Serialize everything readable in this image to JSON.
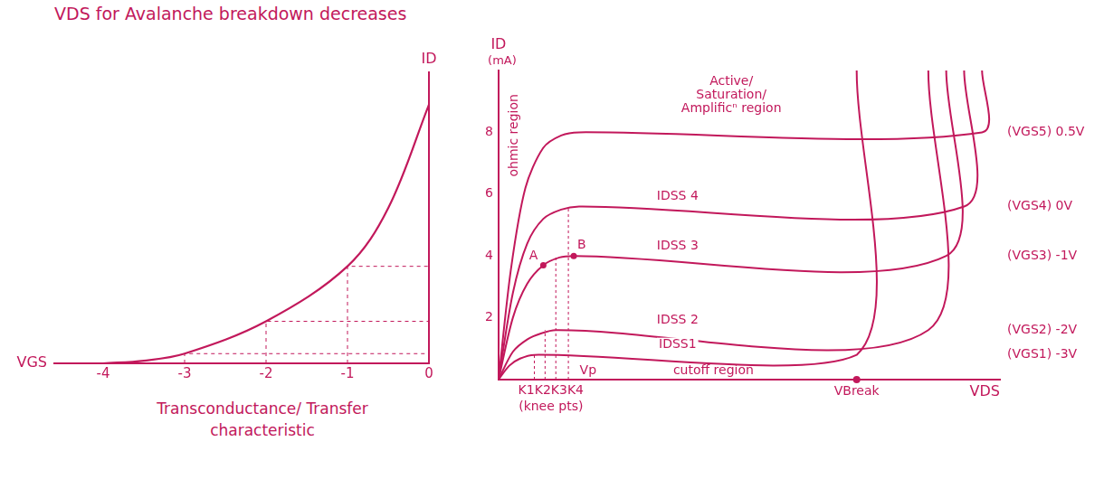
{
  "note": "VDS for Avalanche breakdown decreases",
  "chart_data": [
    {
      "type": "line",
      "title": "Transconductance/ Transfer characteristic",
      "x_label": "VGS",
      "y_label": "ID",
      "x": [
        -4,
        -3.5,
        -3,
        -2,
        -1,
        -0.5,
        0
      ],
      "values": [
        0,
        0.08,
        0.3,
        1.3,
        3.0,
        4.8,
        8
      ],
      "color": "#c2185b",
      "xlim": [
        -4.6,
        0
      ],
      "xticks": [
        -4,
        -3,
        -2,
        -1,
        0
      ],
      "ylim": [
        0,
        9
      ],
      "grid": false,
      "tick_labels": "x"
    },
    {
      "type": "line",
      "x_label": "VDS",
      "y_label": "ID",
      "y_unit": "(mA)",
      "color": "#c2185b",
      "xlim": [
        0,
        28
      ],
      "ylim": [
        0,
        10
      ],
      "yticks": [
        2,
        4,
        6,
        8
      ],
      "grid": false,
      "tick_labels": "y",
      "series": [
        {
          "name": "(VGS5) 0.5V",
          "x": [
            0,
            0.7,
            1.5,
            2.5,
            3.5,
            4.5,
            27,
            27
          ],
          "values": [
            0,
            3.6,
            6.2,
            7.5,
            7.9,
            8.0,
            8.0,
            10
          ]
        },
        {
          "name": "(VGS4) 0V",
          "curve_label": "IDSS 4",
          "x": [
            0,
            0.8,
            1.6,
            2.5,
            3.5,
            4.5,
            26,
            26
          ],
          "values": [
            0,
            2.8,
            4.4,
            5.2,
            5.5,
            5.6,
            5.6,
            10
          ]
        },
        {
          "name": "(VGS3) -1V",
          "curve_label": "IDSS 3",
          "x": [
            0,
            0.8,
            1.6,
            2.5,
            3.4,
            4.2,
            25,
            25
          ],
          "values": [
            0,
            2.0,
            3.1,
            3.7,
            3.95,
            4.0,
            4.0,
            10
          ]
        },
        {
          "name": "(VGS2) -2V",
          "curve_label": "IDSS 2",
          "x": [
            0,
            0.8,
            1.6,
            2.4,
            3.2,
            24,
            24
          ],
          "values": [
            0,
            0.9,
            1.3,
            1.5,
            1.6,
            1.6,
            10
          ]
        },
        {
          "name": "(VGS1) -3V",
          "curve_label": "IDSS1",
          "x": [
            0,
            0.6,
            1.2,
            2,
            20,
            20
          ],
          "values": [
            0,
            0.45,
            0.68,
            0.8,
            0.8,
            10
          ]
        }
      ],
      "points": [
        {
          "label": "A",
          "x": 2.5,
          "y": 3.7
        },
        {
          "label": "B",
          "x": 4.2,
          "y": 4.0
        }
      ],
      "knees": {
        "label": "K1K2K3K4",
        "note": "(knee pts)",
        "x": [
          2.0,
          2.6,
          3.2,
          3.9
        ]
      },
      "vp": {
        "label": "Vp",
        "x": 5
      },
      "vbreak": {
        "label": "VBreak",
        "x": 20
      },
      "regions": {
        "ohmic": "ohmic region",
        "active": [
          "Active/",
          "Saturation/",
          "Amplificⁿ region"
        ],
        "cutoff": "cutoff region"
      }
    }
  ]
}
